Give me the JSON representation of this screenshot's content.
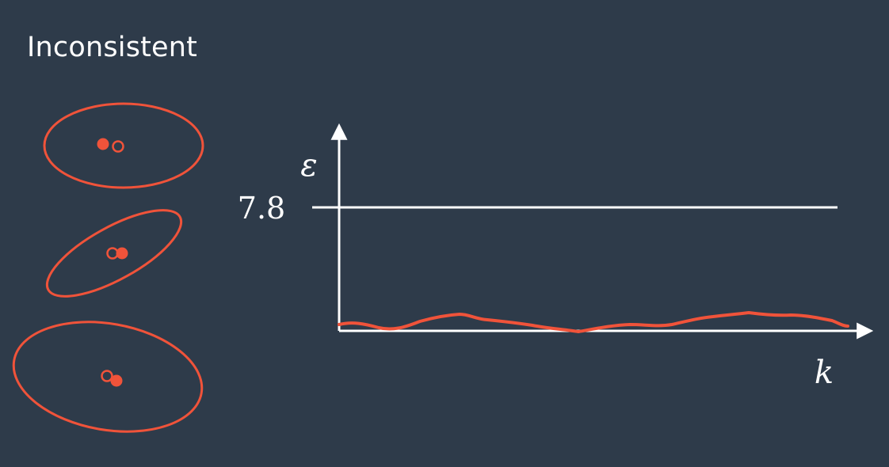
{
  "title": "Inconsistent",
  "colors": {
    "background": "#2e3b4a",
    "accent": "#f0533a",
    "axis": "#ffffff"
  },
  "graph": {
    "y_label": "ε",
    "x_label": "k",
    "threshold_label": "7.8"
  }
}
